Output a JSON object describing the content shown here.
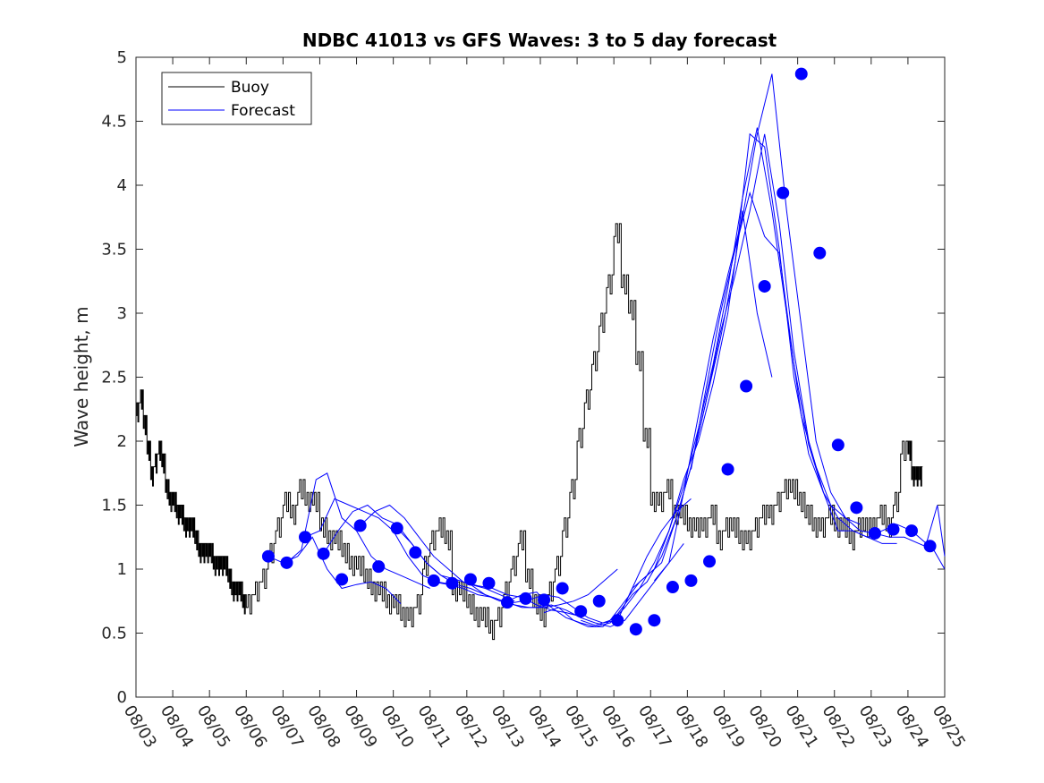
{
  "chart_data": {
    "type": "line",
    "title": "NDBC 41013 vs GFS Waves: 3 to 5 day forecast",
    "xlabel": "",
    "ylabel": "Wave height, m",
    "xlim": [
      0,
      22
    ],
    "ylim": [
      0,
      5
    ],
    "x_ticks": [
      0,
      1,
      2,
      3,
      4,
      5,
      6,
      7,
      8,
      9,
      10,
      11,
      12,
      13,
      14,
      15,
      16,
      17,
      18,
      19,
      20,
      21,
      22
    ],
    "x_tick_labels": [
      "08/03",
      "08/04",
      "08/05",
      "08/06",
      "08/07",
      "08/08",
      "08/09",
      "08/10",
      "08/11",
      "08/12",
      "08/13",
      "08/14",
      "08/15",
      "08/16",
      "08/17",
      "08/18",
      "08/19",
      "08/20",
      "08/21",
      "08/22",
      "08/23",
      "08/24",
      "08/25"
    ],
    "y_ticks": [
      0,
      0.5,
      1,
      1.5,
      2,
      2.5,
      3,
      3.5,
      4,
      4.5,
      5
    ],
    "y_tick_labels": [
      "0",
      "0.5",
      "1",
      "1.5",
      "2",
      "2.5",
      "3",
      "3.5",
      "4",
      "4.5",
      "5"
    ],
    "legend": {
      "position": "top-left",
      "entries": [
        "Buoy",
        "Forecast"
      ]
    },
    "colors": {
      "buoy": "#000000",
      "forecast": "#0000ff",
      "markers": "#0000ff"
    },
    "series": [
      {
        "name": "Buoy",
        "color": "#000000",
        "x": [
          0,
          0.1,
          0.2,
          0.3,
          0.4,
          0.5,
          0.6,
          0.7,
          0.8,
          0.9,
          1.0,
          1.1,
          1.2,
          1.3,
          1.4,
          1.5,
          1.6,
          1.7,
          1.8,
          1.9,
          2.0,
          2.1,
          2.2,
          2.3,
          2.4,
          2.5,
          2.6,
          2.7,
          2.8,
          2.9,
          3.0,
          3.2,
          3.4,
          3.6,
          3.8,
          4.0,
          4.2,
          4.4,
          4.6,
          4.8,
          5.0,
          5.2,
          5.4,
          5.6,
          5.8,
          6.0,
          6.2,
          6.4,
          6.6,
          6.8,
          7.0,
          7.2,
          7.4,
          7.6,
          7.8,
          8.0,
          8.2,
          8.4,
          8.6,
          8.8,
          9.0,
          9.2,
          9.4,
          9.6,
          9.8,
          10.0,
          10.2,
          10.4,
          10.6,
          10.8,
          11.0,
          11.2,
          11.4,
          11.6,
          11.8,
          12.0,
          12.2,
          12.4,
          12.6,
          12.8,
          13.0,
          13.2,
          13.4,
          13.6,
          13.8,
          14.0,
          14.2,
          14.4,
          14.6,
          14.8,
          15.0,
          15.2,
          15.4,
          15.6,
          15.8,
          16.0,
          16.2,
          16.4,
          16.6,
          16.8,
          17.0,
          17.2,
          17.4,
          17.6,
          17.8,
          18.0,
          18.2,
          18.4,
          18.6,
          18.8,
          19.0,
          19.2,
          19.4,
          19.6,
          19.8,
          20.0,
          20.2,
          20.4,
          20.6,
          20.8,
          21.0,
          21.1,
          21.2,
          21.3
        ],
        "y": [
          2.2,
          2.3,
          2.1,
          1.9,
          1.7,
          1.8,
          1.9,
          1.8,
          1.6,
          1.5,
          1.5,
          1.4,
          1.4,
          1.3,
          1.3,
          1.3,
          1.2,
          1.1,
          1.1,
          1.1,
          1.1,
          1.0,
          1.0,
          1.0,
          1.0,
          0.9,
          0.8,
          0.8,
          0.8,
          0.7,
          0.7,
          0.8,
          0.9,
          1.1,
          1.3,
          1.5,
          1.4,
          1.6,
          1.5,
          1.5,
          1.3,
          1.2,
          1.2,
          1.1,
          1.0,
          1.0,
          0.9,
          0.8,
          0.8,
          0.7,
          0.7,
          0.6,
          0.6,
          0.7,
          1.0,
          1.2,
          1.3,
          1.2,
          0.8,
          0.8,
          0.7,
          0.6,
          0.6,
          0.5,
          0.6,
          0.8,
          1.0,
          1.2,
          0.9,
          0.7,
          0.6,
          0.8,
          1.0,
          1.3,
          1.6,
          2.0,
          2.3,
          2.6,
          2.9,
          3.2,
          3.6,
          3.2,
          3.0,
          2.6,
          2.0,
          1.5,
          1.5,
          1.6,
          1.4,
          1.4,
          1.3,
          1.3,
          1.3,
          1.4,
          1.2,
          1.3,
          1.3,
          1.2,
          1.2,
          1.3,
          1.4,
          1.4,
          1.5,
          1.6,
          1.6,
          1.5,
          1.4,
          1.3,
          1.3,
          1.4,
          1.3,
          1.3,
          1.2,
          1.3,
          1.3,
          1.3,
          1.4,
          1.3,
          1.5,
          1.9,
          1.9,
          1.7,
          1.7,
          1.7
        ]
      },
      {
        "name": "Forecast 1",
        "color": "#0000ff",
        "x": [
          3.6,
          4.0,
          4.4,
          4.8,
          5.2,
          5.6,
          6.0,
          6.4,
          6.8,
          7.2
        ],
        "y": [
          1.1,
          1.05,
          1.1,
          1.25,
          1.0,
          0.85,
          0.88,
          0.9,
          0.85,
          0.73
        ]
      },
      {
        "name": "Forecast 2",
        "color": "#0000ff",
        "x": [
          4.1,
          4.5,
          4.9,
          5.2,
          5.6,
          6.0,
          6.4,
          6.8,
          7.2,
          7.6,
          8.0
        ],
        "y": [
          1.05,
          1.15,
          1.7,
          1.75,
          1.4,
          1.3,
          1.1,
          1.0,
          0.95,
          0.9,
          0.85
        ]
      },
      {
        "name": "Forecast 3",
        "color": "#0000ff",
        "x": [
          4.6,
          5.0,
          5.4,
          5.8,
          6.2,
          6.6,
          7.0,
          7.4,
          7.8,
          8.2,
          8.6
        ],
        "y": [
          1.25,
          1.3,
          1.55,
          1.5,
          1.45,
          1.4,
          1.3,
          1.1,
          0.95,
          0.9,
          0.88
        ]
      },
      {
        "name": "Forecast 4",
        "color": "#0000ff",
        "x": [
          5.1,
          5.5,
          5.9,
          6.3,
          6.7,
          7.1,
          7.5,
          7.9,
          8.3,
          8.7,
          9.1,
          9.5,
          9.9,
          10.3
        ],
        "y": [
          1.12,
          1.3,
          1.45,
          1.5,
          1.4,
          1.35,
          1.2,
          1.05,
          0.95,
          0.92,
          0.88,
          0.85,
          0.8,
          0.75
        ]
      },
      {
        "name": "Forecast 5",
        "color": "#0000ff",
        "x": [
          6.1,
          6.5,
          6.9,
          7.3,
          7.7,
          8.1,
          8.5,
          8.9,
          9.3,
          9.7,
          10.1,
          10.5,
          10.9,
          11.3,
          11.7,
          12.1
        ],
        "y": [
          1.34,
          1.45,
          1.5,
          1.4,
          1.25,
          1.1,
          1.0,
          0.9,
          0.87,
          0.85,
          0.8,
          0.78,
          0.72,
          0.68,
          0.66,
          0.63
        ]
      },
      {
        "name": "Forecast 6",
        "color": "#0000ff",
        "x": [
          7.1,
          7.5,
          7.9,
          8.3,
          8.7,
          9.1,
          9.5,
          9.9,
          10.3,
          10.7,
          11.1,
          11.5,
          11.9,
          12.3,
          12.7,
          13.1
        ],
        "y": [
          1.32,
          1.2,
          1.05,
          0.95,
          0.88,
          0.85,
          0.8,
          0.76,
          0.72,
          0.7,
          0.7,
          0.72,
          0.75,
          0.8,
          0.9,
          1.0
        ]
      },
      {
        "name": "Forecast 7",
        "color": "#0000ff",
        "x": [
          8.1,
          8.5,
          8.9,
          9.3,
          9.7,
          10.1,
          10.5,
          10.9,
          11.3,
          11.7,
          12.1,
          12.5,
          12.9,
          13.3,
          13.7,
          14.1,
          14.5,
          14.9
        ],
        "y": [
          0.9,
          0.88,
          0.85,
          0.8,
          0.78,
          0.74,
          0.7,
          0.7,
          0.72,
          0.68,
          0.62,
          0.58,
          0.55,
          0.6,
          0.75,
          0.9,
          1.05,
          1.2
        ]
      },
      {
        "name": "Forecast 8",
        "color": "#0000ff",
        "x": [
          9.1,
          9.5,
          9.9,
          10.3,
          10.7,
          11.1,
          11.5,
          11.9,
          12.3,
          12.7,
          13.1,
          13.5,
          13.9,
          14.3,
          14.7,
          15.1
        ],
        "y": [
          0.88,
          0.8,
          0.75,
          0.74,
          0.76,
          0.8,
          0.78,
          0.7,
          0.62,
          0.58,
          0.6,
          0.85,
          1.1,
          1.3,
          1.45,
          1.55
        ]
      },
      {
        "name": "Forecast 9",
        "color": "#0000ff",
        "x": [
          10.1,
          10.5,
          10.9,
          11.3,
          11.7,
          12.1,
          12.5,
          12.9,
          13.3,
          13.7,
          14.1,
          14.5,
          14.9,
          15.3,
          15.7,
          16.1,
          16.5,
          16.9,
          17.3
        ],
        "y": [
          0.75,
          0.8,
          0.82,
          0.7,
          0.62,
          0.58,
          0.55,
          0.58,
          0.7,
          0.85,
          1.05,
          1.3,
          1.7,
          2.0,
          2.45,
          3.0,
          3.8,
          3.0,
          2.5
        ]
      },
      {
        "name": "Forecast 10",
        "color": "#0000ff",
        "x": [
          11.1,
          11.5,
          11.9,
          12.3,
          12.7,
          13.1,
          13.5,
          13.9,
          14.3,
          14.7,
          15.1,
          15.5,
          15.9,
          16.3,
          16.7,
          17.1,
          17.5,
          17.9,
          18.3,
          18.7
        ],
        "y": [
          0.66,
          0.7,
          0.6,
          0.55,
          0.55,
          0.65,
          0.8,
          0.9,
          1.1,
          1.4,
          1.8,
          2.3,
          2.8,
          3.4,
          4.4,
          4.3,
          3.5,
          2.5,
          1.9,
          1.6
        ]
      },
      {
        "name": "Forecast 11",
        "color": "#0000ff",
        "x": [
          12.1,
          12.5,
          12.9,
          13.3,
          13.7,
          14.1,
          14.5,
          14.9,
          15.3,
          15.7,
          16.1,
          16.5,
          16.9,
          17.3,
          17.7,
          18.1,
          18.5,
          18.9,
          19.3,
          19.7
        ],
        "y": [
          0.6,
          0.56,
          0.6,
          0.75,
          0.9,
          1.0,
          1.3,
          1.65,
          2.1,
          2.6,
          3.2,
          3.9,
          4.45,
          3.8,
          3.0,
          2.2,
          1.8,
          1.5,
          1.4,
          1.35
        ]
      },
      {
        "name": "Forecast 12",
        "color": "#0000ff",
        "x": [
          13.1,
          13.5,
          13.9,
          14.3,
          14.7,
          15.1,
          15.5,
          15.9,
          16.3,
          16.7,
          17.1,
          17.5,
          17.9,
          18.3,
          18.7,
          19.1,
          19.5,
          19.9,
          20.3,
          20.7
        ],
        "y": [
          0.6,
          0.85,
          0.95,
          1.05,
          1.4,
          1.8,
          2.3,
          2.85,
          3.3,
          3.8,
          4.4,
          3.7,
          2.7,
          2.0,
          1.6,
          1.4,
          1.3,
          1.25,
          1.2,
          1.2
        ]
      },
      {
        "name": "Forecast 13",
        "color": "#0000ff",
        "x": [
          14.1,
          14.5,
          14.9,
          15.3,
          15.7,
          16.1,
          16.5,
          16.9,
          17.3,
          17.7,
          18.1,
          18.5,
          18.9,
          19.3,
          19.7,
          20.1,
          20.5,
          20.9,
          21.3,
          21.7,
          22.0
        ],
        "y": [
          0.91,
          1.05,
          1.6,
          2.2,
          2.8,
          3.3,
          3.75,
          4.4,
          4.87,
          3.8,
          2.9,
          2.0,
          1.6,
          1.4,
          1.3,
          1.28,
          1.25,
          1.25,
          1.2,
          1.15,
          1.0
        ]
      },
      {
        "name": "Forecast 14",
        "color": "#0000ff",
        "x": [
          15.1,
          15.5,
          15.9,
          16.3,
          16.7,
          17.1,
          17.5,
          17.9,
          18.3,
          18.7,
          19.1,
          19.5,
          19.9,
          20.3,
          20.7,
          21.1,
          21.5,
          21.8,
          22.0
        ],
        "y": [
          1.78,
          2.4,
          3.0,
          3.5,
          3.94,
          3.6,
          3.47,
          2.6,
          1.97,
          1.6,
          1.3,
          1.3,
          1.25,
          1.3,
          1.35,
          1.3,
          1.2,
          1.5,
          1.1
        ]
      }
    ],
    "markers": {
      "name": "Forecast markers",
      "color": "#0000ff",
      "x": [
        3.6,
        4.1,
        4.6,
        5.1,
        5.6,
        6.1,
        6.6,
        7.1,
        7.6,
        8.1,
        8.6,
        9.1,
        9.6,
        10.1,
        10.6,
        11.1,
        11.6,
        12.1,
        12.6,
        13.1,
        13.6,
        14.1,
        14.6,
        15.1,
        15.6,
        16.1,
        16.6,
        17.1,
        17.6,
        18.1,
        18.6,
        19.1,
        19.6,
        20.1,
        20.6,
        21.1,
        21.6
      ],
      "y": [
        1.1,
        1.05,
        1.25,
        1.12,
        0.92,
        1.34,
        1.02,
        1.32,
        1.13,
        0.91,
        0.89,
        0.92,
        0.89,
        0.74,
        0.77,
        0.76,
        0.85,
        0.67,
        0.75,
        0.6,
        0.53,
        0.6,
        0.86,
        0.91,
        1.06,
        1.78,
        2.43,
        3.21,
        3.94,
        4.87,
        3.47,
        1.97,
        1.48,
        1.28,
        1.31,
        1.3,
        1.18
      ]
    }
  }
}
